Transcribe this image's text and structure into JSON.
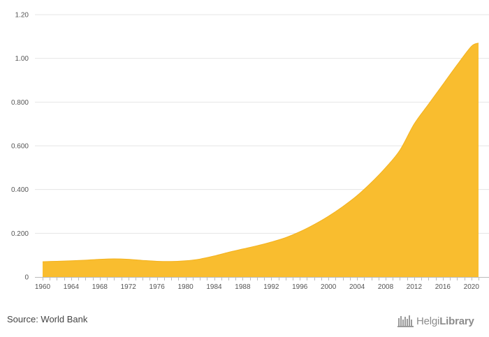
{
  "chart_data": {
    "type": "area",
    "title": "",
    "xlabel": "",
    "ylabel": "",
    "x": [
      1960,
      1962,
      1964,
      1966,
      1968,
      1970,
      1972,
      1974,
      1976,
      1978,
      1980,
      1982,
      1984,
      1986,
      1988,
      1990,
      1992,
      1994,
      1996,
      1998,
      2000,
      2002,
      2004,
      2006,
      2008,
      2010,
      2012,
      2014,
      2016,
      2018,
      2020,
      2021
    ],
    "values": [
      0.07,
      0.072,
      0.074,
      0.077,
      0.081,
      0.083,
      0.081,
      0.076,
      0.072,
      0.071,
      0.074,
      0.082,
      0.096,
      0.113,
      0.128,
      0.143,
      0.16,
      0.18,
      0.207,
      0.24,
      0.278,
      0.322,
      0.372,
      0.432,
      0.5,
      0.58,
      0.7,
      0.79,
      0.88,
      0.97,
      1.055,
      1.07
    ],
    "xlim": [
      1960,
      2021
    ],
    "ylim": [
      0,
      1.2
    ],
    "x_ticks": [
      1960,
      1964,
      1968,
      1972,
      1976,
      1980,
      1984,
      1988,
      1992,
      1996,
      2000,
      2004,
      2008,
      2012,
      2016,
      2020
    ],
    "y_ticks": [
      0,
      0.2,
      0.4,
      0.6,
      0.8,
      1.0,
      1.2
    ],
    "y_tick_labels": [
      "0",
      "0.200",
      "0.400",
      "0.600",
      "0.800",
      "1.00",
      "1.20"
    ],
    "grid": true,
    "fill_color": "#F9BD2F",
    "line_color": "#F3B21E",
    "grid_color": "#E5E5E5",
    "axis_color": "#BBBBBB"
  },
  "footer": {
    "source": "Source: World Bank",
    "brand_light": "Helgi",
    "brand_bold": "Library"
  }
}
